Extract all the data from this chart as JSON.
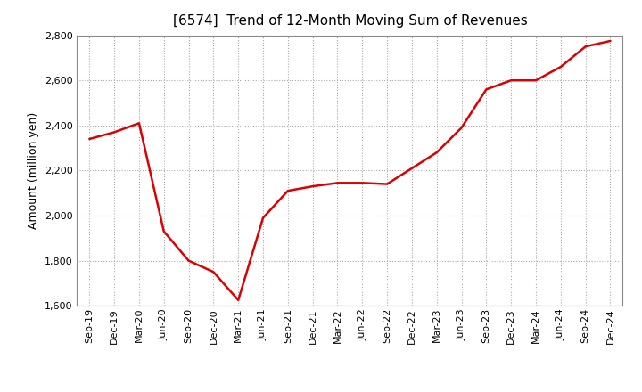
{
  "title": "[6574]  Trend of 12-Month Moving Sum of Revenues",
  "ylabel": "Amount (million yen)",
  "x_labels": [
    "Sep-19",
    "Dec-19",
    "Mar-20",
    "Jun-20",
    "Sep-20",
    "Dec-20",
    "Mar-21",
    "Jun-21",
    "Sep-21",
    "Dec-21",
    "Mar-22",
    "Jun-22",
    "Sep-22",
    "Dec-22",
    "Mar-23",
    "Jun-23",
    "Sep-23",
    "Dec-23",
    "Mar-24",
    "Jun-24",
    "Sep-24",
    "Dec-24"
  ],
  "values": [
    2340,
    2370,
    2410,
    1930,
    1800,
    1750,
    1625,
    1990,
    2110,
    2130,
    2145,
    2145,
    2140,
    2210,
    2280,
    2390,
    2560,
    2600,
    2600,
    2660,
    2750,
    2775
  ],
  "line_color": "#dd0000",
  "line_width": 1.8,
  "ylim": [
    1600,
    2800
  ],
  "yticks": [
    1600,
    1800,
    2000,
    2200,
    2400,
    2600,
    2800
  ],
  "background_color": "#ffffff",
  "grid_color": "#aaaaaa",
  "title_fontsize": 11,
  "label_fontsize": 9,
  "tick_fontsize": 8
}
